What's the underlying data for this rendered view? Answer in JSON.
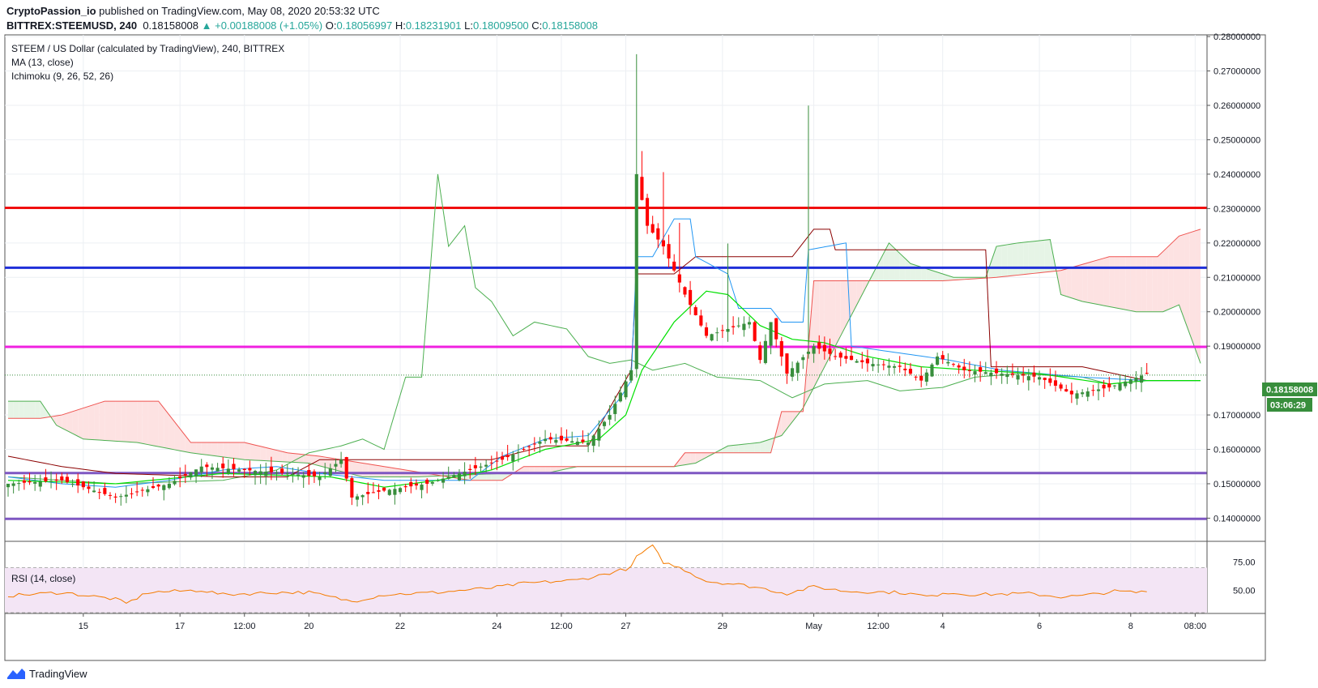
{
  "header": {
    "author": "CryptoPassion_io",
    "published_text": " published on TradingView.com, May 08, 2020 20:53:32 UTC",
    "symbol": "BITTREX:STEEMUSD, 240",
    "last": "0.18158008",
    "change": "+0.00188008 (+1.05%)",
    "o_label": "O:",
    "o": "0.18056997",
    "h_label": "H:",
    "h": "0.18231901",
    "l_label": "L:",
    "l": "0.18009500",
    "c_label": "C:",
    "c": "0.18158008"
  },
  "legend": {
    "title": "STEEM / US Dollar (calculated by TradingView), 240, BITTREX",
    "ma": "MA (13, close)",
    "ichimoku": "Ichimoku (9, 26, 52, 26)",
    "rsi": "RSI (14, close)"
  },
  "price_badge": {
    "price": "0.18158008",
    "countdown": "03:06:29"
  },
  "footer": {
    "brand": "TradingView"
  },
  "colors": {
    "up": "#388e3c",
    "down": "#ff0000",
    "ma": "#00e000",
    "tenkan": "#2196f3",
    "kijun": "#8b0000",
    "chikou": "#4caf50",
    "cloud_bull": "#e6f4e6",
    "cloud_bear": "#fde2e2",
    "hline_red": "#f01010",
    "hline_blue": "#1f2fd8",
    "hline_magenta": "#f020e0",
    "hline_purple": "#7e57c2",
    "rsi": "#f57c00",
    "rsi_band": "#f3e5f5"
  },
  "chart_data": {
    "type": "candlestick",
    "symbol": "BITTREX:STEEMUSD",
    "interval": "240",
    "y_ticks": [
      "0.28000000",
      "0.27000000",
      "0.26000000",
      "0.25000000",
      "0.24000000",
      "0.23000000",
      "0.22000000",
      "0.21000000",
      "0.20000000",
      "0.19000000",
      "0.17000000",
      "0.16000000",
      "0.15000000",
      "0.14000000"
    ],
    "ylim": [
      0.1335,
      0.2805
    ],
    "x_ticks": [
      "15",
      "17",
      "12:00",
      "20",
      "22",
      "24",
      "12:00",
      "27",
      "29",
      "May",
      "12:00",
      "4",
      "6",
      "8",
      "08:00"
    ],
    "x_tick_bars": [
      14,
      32,
      44,
      56,
      73,
      91,
      103,
      115,
      133,
      150,
      162,
      174,
      192,
      209,
      221
    ],
    "bars_total": 223,
    "horizontal_levels": [
      {
        "price": 0.2302,
        "color": "hline_red"
      },
      {
        "price": 0.2128,
        "color": "hline_blue"
      },
      {
        "price": 0.1898,
        "color": "hline_magenta"
      },
      {
        "price": 0.1531,
        "color": "hline_purple"
      },
      {
        "price": 0.1398,
        "color": "hline_purple"
      }
    ],
    "last_price": 0.18158008,
    "price_anchors": [
      [
        0,
        0.15
      ],
      [
        10,
        0.151
      ],
      [
        20,
        0.146
      ],
      [
        30,
        0.15
      ],
      [
        36,
        0.155
      ],
      [
        44,
        0.154
      ],
      [
        52,
        0.153
      ],
      [
        58,
        0.152
      ],
      [
        62,
        0.157
      ],
      [
        64,
        0.146
      ],
      [
        70,
        0.148
      ],
      [
        78,
        0.15
      ],
      [
        86,
        0.154
      ],
      [
        92,
        0.157
      ],
      [
        100,
        0.163
      ],
      [
        108,
        0.162
      ],
      [
        112,
        0.17
      ],
      [
        116,
        0.183
      ],
      [
        117,
        0.24
      ],
      [
        119,
        0.225
      ],
      [
        122,
        0.219
      ],
      [
        126,
        0.205
      ],
      [
        130,
        0.193
      ],
      [
        134,
        0.195
      ],
      [
        138,
        0.197
      ],
      [
        140,
        0.186
      ],
      [
        142,
        0.197
      ],
      [
        145,
        0.182
      ],
      [
        150,
        0.19
      ],
      [
        154,
        0.187
      ],
      [
        160,
        0.185
      ],
      [
        166,
        0.184
      ],
      [
        170,
        0.18
      ],
      [
        173,
        0.187
      ],
      [
        178,
        0.183
      ],
      [
        185,
        0.182
      ],
      [
        192,
        0.181
      ],
      [
        198,
        0.176
      ],
      [
        205,
        0.178
      ],
      [
        212,
        0.182
      ]
    ],
    "ma13_anchors": [
      [
        0,
        0.151
      ],
      [
        20,
        0.15
      ],
      [
        40,
        0.153
      ],
      [
        60,
        0.152
      ],
      [
        70,
        0.149
      ],
      [
        80,
        0.151
      ],
      [
        90,
        0.154
      ],
      [
        100,
        0.16
      ],
      [
        110,
        0.163
      ],
      [
        115,
        0.17
      ],
      [
        118,
        0.183
      ],
      [
        124,
        0.197
      ],
      [
        130,
        0.206
      ],
      [
        134,
        0.205
      ],
      [
        140,
        0.196
      ],
      [
        146,
        0.192
      ],
      [
        152,
        0.191
      ],
      [
        160,
        0.187
      ],
      [
        170,
        0.184
      ],
      [
        180,
        0.183
      ],
      [
        192,
        0.182
      ],
      [
        205,
        0.179
      ],
      [
        212,
        0.18
      ]
    ],
    "tenkan_anchors": [
      [
        0,
        0.152
      ],
      [
        10,
        0.15
      ],
      [
        20,
        0.149
      ],
      [
        30,
        0.151
      ],
      [
        40,
        0.154
      ],
      [
        50,
        0.155
      ],
      [
        58,
        0.153
      ],
      [
        64,
        0.152
      ],
      [
        70,
        0.151
      ],
      [
        76,
        0.151
      ],
      [
        86,
        0.151
      ],
      [
        92,
        0.158
      ],
      [
        100,
        0.163
      ],
      [
        108,
        0.164
      ],
      [
        114,
        0.175
      ],
      [
        116,
        0.18
      ],
      [
        117,
        0.216
      ],
      [
        120,
        0.216
      ],
      [
        124,
        0.227
      ],
      [
        127,
        0.227
      ],
      [
        128,
        0.216
      ],
      [
        134,
        0.211
      ],
      [
        136,
        0.201
      ],
      [
        142,
        0.201
      ],
      [
        144,
        0.197
      ],
      [
        148,
        0.197
      ],
      [
        149,
        0.218
      ],
      [
        156,
        0.22
      ],
      [
        157,
        0.19
      ],
      [
        166,
        0.188
      ],
      [
        175,
        0.186
      ],
      [
        185,
        0.183
      ],
      [
        200,
        0.181
      ],
      [
        212,
        0.18
      ]
    ],
    "kijun_anchors": [
      [
        0,
        0.158
      ],
      [
        10,
        0.155
      ],
      [
        20,
        0.153
      ],
      [
        40,
        0.152
      ],
      [
        52,
        0.152
      ],
      [
        58,
        0.157
      ],
      [
        70,
        0.157
      ],
      [
        90,
        0.157
      ],
      [
        100,
        0.161
      ],
      [
        108,
        0.161
      ],
      [
        116,
        0.183
      ],
      [
        117,
        0.211
      ],
      [
        124,
        0.211
      ],
      [
        128,
        0.216
      ],
      [
        146,
        0.216
      ],
      [
        150,
        0.224
      ],
      [
        153,
        0.224
      ],
      [
        154,
        0.218
      ],
      [
        182,
        0.218
      ],
      [
        183,
        0.184
      ],
      [
        200,
        0.184
      ],
      [
        212,
        0.18
      ]
    ],
    "chikou_anchors": [
      [
        0,
        0.152
      ],
      [
        20,
        0.15
      ],
      [
        40,
        0.151
      ],
      [
        50,
        0.154
      ],
      [
        56,
        0.159
      ],
      [
        62,
        0.161
      ],
      [
        66,
        0.163
      ],
      [
        70,
        0.16
      ],
      [
        74,
        0.181
      ],
      [
        77,
        0.181
      ],
      [
        80,
        0.24
      ],
      [
        82,
        0.219
      ],
      [
        85,
        0.225
      ],
      [
        87,
        0.207
      ],
      [
        90,
        0.203
      ],
      [
        94,
        0.193
      ],
      [
        98,
        0.197
      ],
      [
        104,
        0.195
      ],
      [
        108,
        0.187
      ],
      [
        112,
        0.185
      ],
      [
        116,
        0.186
      ],
      [
        120,
        0.183
      ],
      [
        126,
        0.185
      ],
      [
        132,
        0.181
      ],
      [
        140,
        0.18
      ],
      [
        146,
        0.175
      ],
      [
        152,
        0.179
      ],
      [
        160,
        0.18
      ],
      [
        166,
        0.177
      ],
      [
        174,
        0.178
      ],
      [
        180,
        0.181
      ],
      [
        188,
        0.182
      ],
      [
        200,
        0.181
      ],
      [
        205,
        0.179
      ],
      [
        212,
        0.18
      ]
    ],
    "cloud": {
      "start_bar": 0,
      "span_a": [
        [
          0,
          0.174
        ],
        [
          6,
          0.174
        ],
        [
          9,
          0.167
        ],
        [
          14,
          0.163
        ],
        [
          24,
          0.162
        ],
        [
          34,
          0.159
        ],
        [
          44,
          0.157
        ],
        [
          56,
          0.156
        ],
        [
          66,
          0.152
        ],
        [
          76,
          0.152
        ],
        [
          92,
          0.153
        ],
        [
          100,
          0.153
        ],
        [
          106,
          0.155
        ],
        [
          116,
          0.155
        ],
        [
          124,
          0.155
        ],
        [
          128,
          0.156
        ],
        [
          134,
          0.161
        ],
        [
          140,
          0.162
        ],
        [
          144,
          0.164
        ],
        [
          148,
          0.172
        ],
        [
          152,
          0.184
        ],
        [
          164,
          0.22
        ],
        [
          168,
          0.214
        ],
        [
          176,
          0.21
        ],
        [
          182,
          0.21
        ],
        [
          184,
          0.219
        ],
        [
          188,
          0.22
        ],
        [
          194,
          0.221
        ],
        [
          196,
          0.205
        ],
        [
          200,
          0.203
        ],
        [
          210,
          0.2
        ],
        [
          215,
          0.2
        ],
        [
          218,
          0.202
        ],
        [
          222,
          0.185
        ]
      ],
      "span_b": [
        [
          0,
          0.169
        ],
        [
          6,
          0.169
        ],
        [
          10,
          0.17
        ],
        [
          18,
          0.174
        ],
        [
          28,
          0.174
        ],
        [
          34,
          0.162
        ],
        [
          44,
          0.162
        ],
        [
          52,
          0.159
        ],
        [
          58,
          0.158
        ],
        [
          70,
          0.155
        ],
        [
          86,
          0.151
        ],
        [
          92,
          0.151
        ],
        [
          96,
          0.155
        ],
        [
          112,
          0.155
        ],
        [
          120,
          0.155
        ],
        [
          124,
          0.155
        ],
        [
          126,
          0.159
        ],
        [
          142,
          0.159
        ],
        [
          144,
          0.171
        ],
        [
          148,
          0.171
        ],
        [
          150,
          0.209
        ],
        [
          164,
          0.209
        ],
        [
          174,
          0.209
        ],
        [
          184,
          0.21
        ],
        [
          196,
          0.212
        ],
        [
          205,
          0.216
        ],
        [
          214,
          0.216
        ],
        [
          218,
          0.222
        ],
        [
          222,
          0.224
        ]
      ]
    },
    "rsi": {
      "ylim": [
        30,
        92
      ],
      "levels": [
        70,
        30
      ],
      "ticks": [
        "75.00",
        "50.00"
      ],
      "anchors": [
        [
          0,
          45
        ],
        [
          10,
          48
        ],
        [
          20,
          42
        ],
        [
          22,
          38
        ],
        [
          26,
          48
        ],
        [
          36,
          50
        ],
        [
          40,
          46
        ],
        [
          50,
          48
        ],
        [
          56,
          48
        ],
        [
          60,
          44
        ],
        [
          64,
          40
        ],
        [
          70,
          46
        ],
        [
          80,
          48
        ],
        [
          90,
          52
        ],
        [
          96,
          56
        ],
        [
          106,
          59
        ],
        [
          110,
          63
        ],
        [
          116,
          70
        ],
        [
          117,
          80
        ],
        [
          120,
          89
        ],
        [
          122,
          75
        ],
        [
          126,
          68
        ],
        [
          130,
          58
        ],
        [
          136,
          55
        ],
        [
          140,
          52
        ],
        [
          145,
          47
        ],
        [
          150,
          53
        ],
        [
          156,
          49
        ],
        [
          166,
          48
        ],
        [
          172,
          44
        ],
        [
          174,
          48
        ],
        [
          180,
          46
        ],
        [
          190,
          47
        ],
        [
          196,
          44
        ],
        [
          200,
          45
        ],
        [
          206,
          49
        ],
        [
          210,
          48
        ],
        [
          212,
          49
        ]
      ]
    }
  }
}
